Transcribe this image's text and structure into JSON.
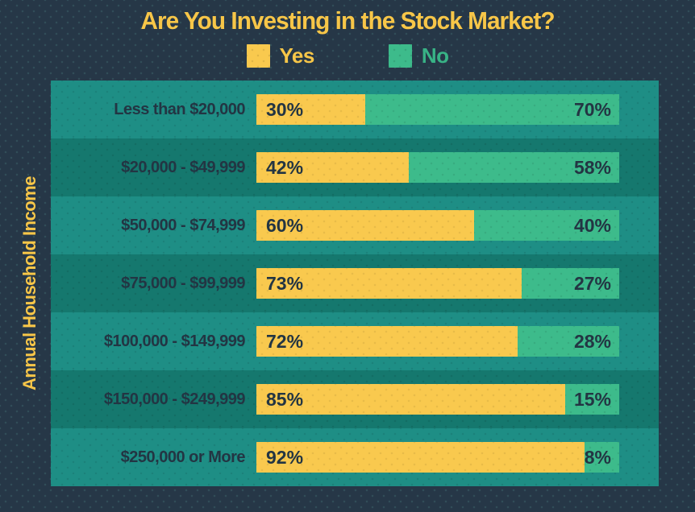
{
  "title": "Are You Investing in the Stock Market?",
  "y_axis_label": "Annual Household Income",
  "legend": {
    "yes_label": "Yes",
    "no_label": "No"
  },
  "colors": {
    "navy_bg": "#263747",
    "row_light": "#1E8E85",
    "row_dark": "#15786E",
    "bar_yellow": "#F9C94E",
    "bar_green": "#3DBB8B",
    "text_dark": "#233543",
    "accent_yellow": "#F7C648",
    "legend_no_text": "#38B386"
  },
  "rows": [
    {
      "category": "Less than $20,000",
      "yes": 30,
      "no": 70,
      "yes_pct": "30%",
      "no_pct": "70%"
    },
    {
      "category": "$20,000 - $49,999",
      "yes": 42,
      "no": 58,
      "yes_pct": "42%",
      "no_pct": "58%"
    },
    {
      "category": "$50,000 - $74,999",
      "yes": 60,
      "no": 40,
      "yes_pct": "60%",
      "no_pct": "40%"
    },
    {
      "category": "$75,000 - $99,999",
      "yes": 73,
      "no": 27,
      "yes_pct": "73%",
      "no_pct": "27%"
    },
    {
      "category": "$100,000 - $149,999",
      "yes": 72,
      "no": 28,
      "yes_pct": "72%",
      "no_pct": "28%"
    },
    {
      "category": "$150,000 - $249,999",
      "yes": 85,
      "no": 15,
      "yes_pct": "85%",
      "no_pct": "15%"
    },
    {
      "category": "$250,000 or More",
      "yes": 92,
      "no": 8,
      "yes_pct": "92%",
      "no_pct": "8%"
    }
  ],
  "chart_data": {
    "type": "bar",
    "orientation": "horizontal-stacked",
    "title": "Are You Investing in the Stock Market?",
    "xlabel": "",
    "ylabel": "Annual Household Income",
    "xlim": [
      0,
      100
    ],
    "grid": false,
    "legend_position": "top",
    "categories": [
      "Less than $20,000",
      "$20,000 - $49,999",
      "$50,000 - $74,999",
      "$75,000 - $99,999",
      "$100,000 - $149,999",
      "$150,000 - $249,999",
      "$250,000 or More"
    ],
    "series": [
      {
        "name": "Yes",
        "color": "#F9C94E",
        "values": [
          30,
          42,
          60,
          73,
          72,
          85,
          92
        ]
      },
      {
        "name": "No",
        "color": "#3DBB8B",
        "values": [
          70,
          58,
          40,
          27,
          28,
          15,
          8
        ]
      }
    ],
    "data_labels": "percent shown inside each segment"
  }
}
